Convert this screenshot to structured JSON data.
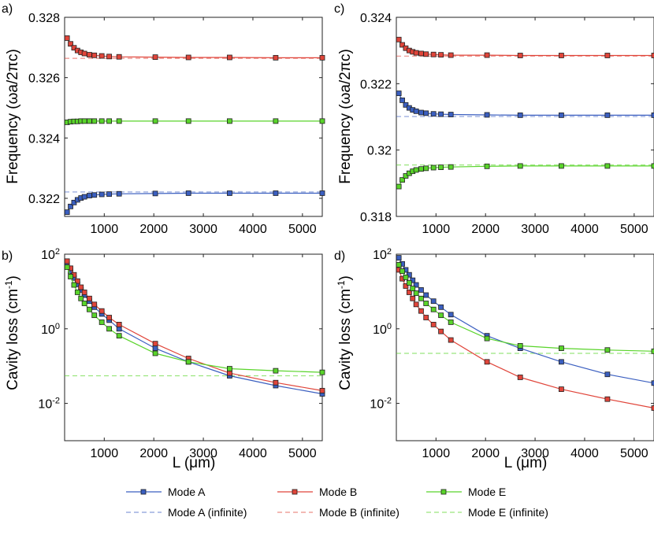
{
  "panel_labels": [
    "a)",
    "b)",
    "c)",
    "d)"
  ],
  "xlabel": "L (μm)",
  "ylabel_frequency": "Frequency (ωa/2πc)",
  "ylabel_loss": "Cavity loss (cm-1)",
  "legend": {
    "mode_a": "Mode A",
    "mode_b": "Mode B",
    "mode_e": "Mode E",
    "mode_a_inf": "Mode A (infinite)",
    "mode_b_inf": "Mode B (infinite)",
    "mode_e_inf": "Mode E (infinite)"
  },
  "colors": {
    "mode_a": "#3b5fc0",
    "mode_b": "#e0453a",
    "mode_e": "#59d42a"
  },
  "chart_data": [
    {
      "panel": "a)",
      "type": "line",
      "ylabel": "Frequency (ωa/2πc)",
      "xlim": [
        200,
        5400
      ],
      "ylim": [
        0.3214,
        0.328
      ],
      "xticks": [
        1000,
        2000,
        3000,
        4000,
        5000
      ],
      "yticks": [
        0.322,
        0.324,
        0.326,
        0.328
      ],
      "ytick_labels": [
        "0.322",
        "0.324",
        "0.326",
        "0.328"
      ],
      "x": [
        250,
        320,
        390,
        460,
        530,
        600,
        700,
        800,
        950,
        1100,
        1300,
        2030,
        2700,
        3530,
        4460,
        5400
      ],
      "series": [
        {
          "name": "Mode A",
          "key": "mode_a",
          "values": [
            0.32154,
            0.32173,
            0.32186,
            0.32195,
            0.32201,
            0.32205,
            0.32209,
            0.32211,
            0.32213,
            0.32214,
            0.32215,
            0.32216,
            0.32217,
            0.32217,
            0.32217,
            0.32217
          ]
        },
        {
          "name": "Mode B",
          "key": "mode_b",
          "values": [
            0.32731,
            0.32712,
            0.32699,
            0.3269,
            0.32684,
            0.3268,
            0.32676,
            0.32674,
            0.32672,
            0.3267,
            0.32669,
            0.32668,
            0.32667,
            0.32667,
            0.32666,
            0.32666
          ]
        },
        {
          "name": "Mode E",
          "key": "mode_e",
          "values": [
            0.32452,
            0.32454,
            0.32455,
            0.32455,
            0.32456,
            0.32456,
            0.32456,
            0.32456,
            0.32456,
            0.32456,
            0.32456,
            0.32456,
            0.32456,
            0.32456,
            0.32456,
            0.32456
          ]
        }
      ],
      "infinite": [
        {
          "name": "Mode A (infinite)",
          "key": "mode_a",
          "value": 0.32221
        },
        {
          "name": "Mode B (infinite)",
          "key": "mode_b",
          "value": 0.32664
        }
      ]
    },
    {
      "panel": "b)",
      "type": "line",
      "ylabel": "Cavity loss (cm-1)",
      "yscale": "log",
      "xlim": [
        200,
        5400
      ],
      "ylim": [
        0.001,
        100
      ],
      "xticks": [
        1000,
        2000,
        3000,
        4000,
        5000
      ],
      "yticks": [
        0.01,
        1,
        100
      ],
      "x": [
        250,
        320,
        390,
        460,
        530,
        600,
        700,
        800,
        950,
        1100,
        1300,
        2030,
        2700,
        3530,
        4460,
        5400
      ],
      "series": [
        {
          "name": "Mode A",
          "key": "mode_a",
          "values": [
            55,
            35,
            23,
            15.5,
            11,
            8,
            5.5,
            3.8,
            2.5,
            1.7,
            1.0,
            0.3,
            0.13,
            0.055,
            0.03,
            0.018
          ]
        },
        {
          "name": "Mode B",
          "key": "mode_b",
          "values": [
            65,
            42,
            28,
            19,
            13,
            9.5,
            6.5,
            4.5,
            3.0,
            2.0,
            1.3,
            0.4,
            0.16,
            0.065,
            0.036,
            0.022
          ]
        },
        {
          "name": "Mode E",
          "key": "mode_e",
          "values": [
            45,
            25,
            15,
            9.5,
            6.5,
            4.8,
            3.3,
            2.3,
            1.5,
            1.0,
            0.65,
            0.22,
            0.13,
            0.085,
            0.075,
            0.068
          ]
        }
      ],
      "infinite": [
        {
          "name": "Mode E (infinite)",
          "key": "mode_e",
          "value": 0.055
        }
      ]
    },
    {
      "panel": "c)",
      "type": "line",
      "ylabel": "Frequency (ωa/2πc)",
      "xlim": [
        200,
        5400
      ],
      "ylim": [
        0.318,
        0.324
      ],
      "xticks": [
        1000,
        2000,
        3000,
        4000,
        5000
      ],
      "yticks": [
        0.318,
        0.32,
        0.322,
        0.324
      ],
      "ytick_labels": [
        "0.318",
        "0.32",
        "0.322",
        "0.324"
      ],
      "x": [
        250,
        320,
        390,
        460,
        530,
        600,
        700,
        800,
        950,
        1100,
        1300,
        2030,
        2700,
        3530,
        4460,
        5400
      ],
      "series": [
        {
          "name": "Mode A",
          "key": "mode_a",
          "values": [
            0.32171,
            0.3215,
            0.32136,
            0.32127,
            0.32121,
            0.32117,
            0.32113,
            0.32111,
            0.32109,
            0.32108,
            0.32107,
            0.32106,
            0.32105,
            0.32105,
            0.32105,
            0.32105
          ]
        },
        {
          "name": "Mode B",
          "key": "mode_b",
          "values": [
            0.32333,
            0.32317,
            0.32307,
            0.323,
            0.32296,
            0.32293,
            0.32291,
            0.32289,
            0.32288,
            0.32287,
            0.32286,
            0.32286,
            0.32285,
            0.32285,
            0.32285,
            0.32285
          ]
        },
        {
          "name": "Mode E",
          "key": "mode_e",
          "values": [
            0.3189,
            0.3191,
            0.31922,
            0.3193,
            0.31936,
            0.3194,
            0.31943,
            0.31945,
            0.31947,
            0.31948,
            0.31949,
            0.31951,
            0.31952,
            0.31952,
            0.31952,
            0.31952
          ]
        }
      ],
      "infinite": [
        {
          "name": "Mode A (infinite)",
          "key": "mode_a",
          "value": 0.32101
        },
        {
          "name": "Mode B (infinite)",
          "key": "mode_b",
          "value": 0.32283
        },
        {
          "name": "Mode E (infinite)",
          "key": "mode_e",
          "value": 0.31955
        }
      ]
    },
    {
      "panel": "d)",
      "type": "line",
      "ylabel": "Cavity loss (cm-1)",
      "yscale": "log",
      "xlim": [
        200,
        5400
      ],
      "ylim": [
        0.001,
        100
      ],
      "xticks": [
        1000,
        2000,
        3000,
        4000,
        5000
      ],
      "yticks": [
        0.01,
        1,
        100
      ],
      "x": [
        250,
        320,
        390,
        460,
        530,
        600,
        700,
        800,
        950,
        1100,
        1300,
        2030,
        2700,
        3530,
        4460,
        5400
      ],
      "series": [
        {
          "name": "Mode A",
          "key": "mode_a",
          "values": [
            80,
            55,
            38,
            28,
            20,
            15,
            11,
            8,
            5.5,
            3.8,
            2.4,
            0.65,
            0.3,
            0.13,
            0.06,
            0.035
          ]
        },
        {
          "name": "Mode B",
          "key": "mode_b",
          "values": [
            38,
            22,
            14,
            9.5,
            6.5,
            4.5,
            3.0,
            2.0,
            1.3,
            0.85,
            0.5,
            0.13,
            0.05,
            0.024,
            0.013,
            0.0075
          ]
        },
        {
          "name": "Mode E",
          "key": "mode_e",
          "values": [
            52,
            35,
            24,
            17,
            12,
            9,
            6.5,
            4.8,
            3.3,
            2.3,
            1.5,
            0.55,
            0.35,
            0.3,
            0.27,
            0.25
          ]
        }
      ],
      "infinite": [
        {
          "name": "Mode E (infinite)",
          "key": "mode_e",
          "value": 0.22
        }
      ]
    }
  ]
}
